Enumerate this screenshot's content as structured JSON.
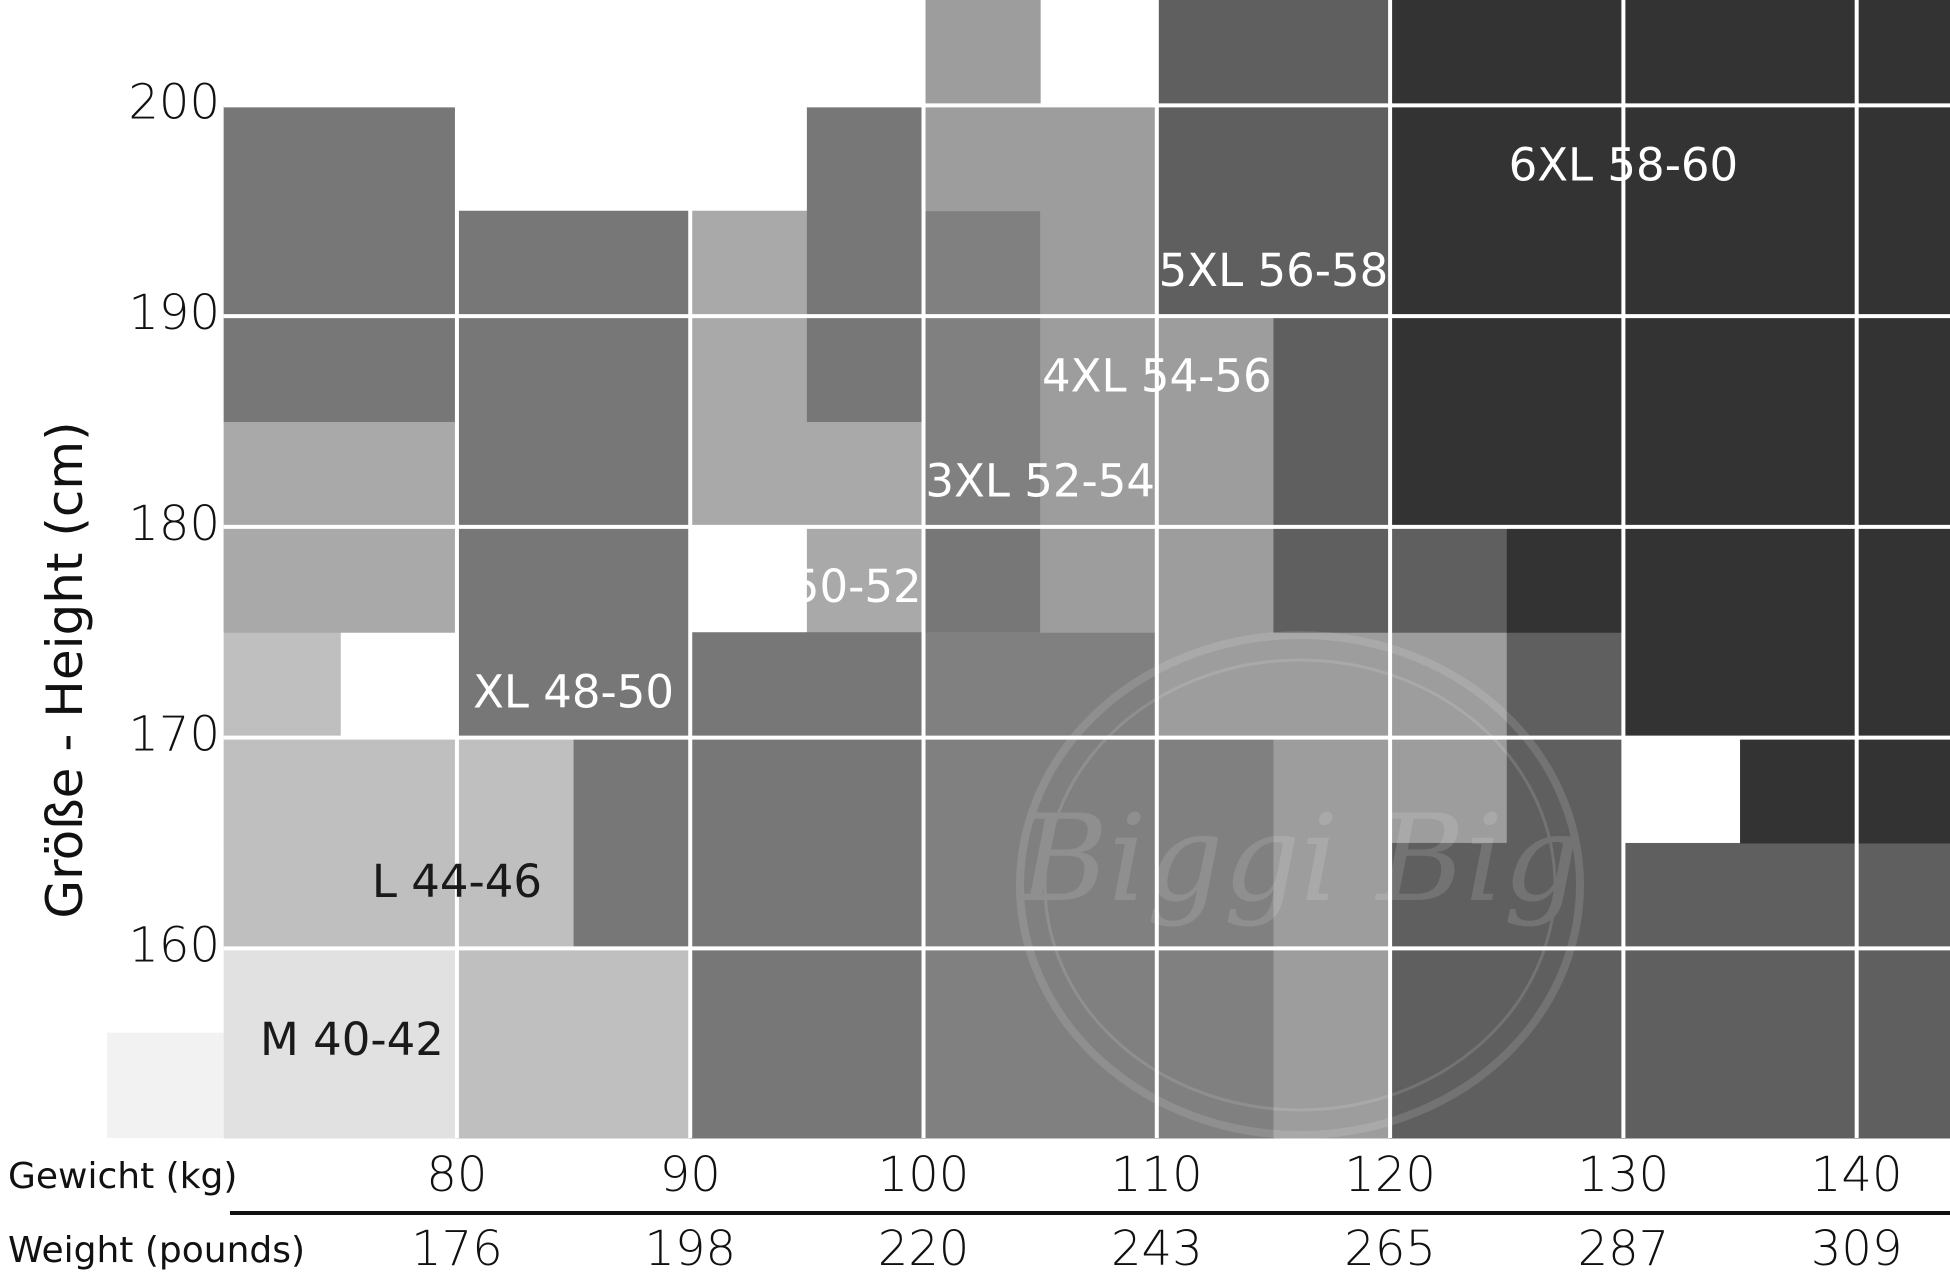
{
  "chart_data": {
    "type": "heatmap",
    "title": "",
    "ylabel": "Größe - Height (cm)",
    "x_axis_rows": [
      {
        "label": "Gewicht (kg)",
        "ticks": [
          "80",
          "90",
          "100",
          "110",
          "120",
          "130",
          "140"
        ]
      },
      {
        "label": "Weight (pounds)",
        "ticks": [
          "176",
          "198",
          "220",
          "243",
          "265",
          "287",
          "309"
        ]
      }
    ],
    "x_ticks": [
      80,
      90,
      100,
      110,
      120,
      130,
      140
    ],
    "y_ticks": [
      "160",
      "170",
      "180",
      "190",
      "200"
    ],
    "y_tick_values": [
      160,
      170,
      180,
      190,
      200
    ],
    "xlim": [
      65,
      144
    ],
    "ylim": [
      151,
      205
    ],
    "zones": [
      {
        "label": "M 40-42",
        "color": "#e1e1e1",
        "label_at": [
          75.5,
          155.5
        ],
        "cells": [
          [
            70,
            75,
            151,
            156
          ],
          [
            75,
            80,
            151,
            156
          ],
          [
            75,
            80,
            156,
            160
          ],
          [
            70,
            75,
            156,
            160
          ]
        ]
      },
      {
        "label": "L 44-46",
        "color": "#bfbfbf",
        "label_at": [
          80,
          163
        ],
        "cells": [
          [
            70,
            75,
            160,
            165
          ],
          [
            75,
            80,
            160,
            170
          ],
          [
            70,
            75,
            165,
            180
          ],
          [
            80,
            85,
            151,
            170
          ],
          [
            85,
            90,
            151,
            160
          ]
        ]
      },
      {
        "label": "XL 48-50",
        "color": "#a9a9a9",
        "label_at": [
          85,
          172
        ],
        "cells": [
          [
            70,
            80,
            175,
            185
          ],
          [
            90,
            95,
            180,
            195
          ],
          [
            95,
            100,
            175,
            185
          ]
        ]
      },
      {
        "label": "2XL 50-52",
        "color": "#777777",
        "label_at": [
          95,
          177
        ],
        "cells": [
          [
            80,
            90,
            170,
            195
          ],
          [
            85,
            90,
            160,
            170
          ],
          [
            90,
            100,
            151,
            175
          ],
          [
            95,
            100,
            185,
            200
          ],
          [
            100,
            105,
            175,
            180
          ],
          [
            70,
            80,
            185,
            200
          ]
        ]
      },
      {
        "label": "3XL 52-54",
        "color": "#808080",
        "label_at": [
          105,
          182
        ],
        "cells": [
          [
            100,
            105,
            180,
            195
          ],
          [
            105,
            110,
            170,
            180
          ],
          [
            110,
            115,
            151,
            170
          ],
          [
            105,
            110,
            151,
            170
          ],
          [
            100,
            110,
            151,
            175
          ]
        ]
      },
      {
        "label": "4XL 54-56",
        "color": "#9d9d9d",
        "label_at": [
          110,
          187
        ],
        "cells": [
          [
            105,
            115,
            175,
            200
          ],
          [
            110,
            115,
            170,
            185
          ],
          [
            115,
            125,
            151,
            175
          ],
          [
            100,
            105,
            195,
            205
          ]
        ]
      },
      {
        "label": "5XL 56-58",
        "color": "#5f5f5f",
        "label_at": [
          115,
          192
        ],
        "cells": [
          [
            110,
            120,
            190,
            205
          ],
          [
            115,
            120,
            175,
            190
          ],
          [
            120,
            125,
            175,
            180
          ],
          [
            125,
            130,
            165,
            175
          ],
          [
            120,
            130,
            151,
            165
          ],
          [
            130,
            144,
            151,
            165
          ]
        ]
      },
      {
        "label": "6XL 58-60",
        "color": "#333333",
        "label_at": [
          130,
          197
        ],
        "cells": [
          [
            120,
            144,
            180,
            205
          ],
          [
            125,
            130,
            175,
            180
          ],
          [
            130,
            144,
            170,
            180
          ],
          [
            135,
            144,
            165,
            170
          ]
        ]
      }
    ],
    "extra_patches": [
      {
        "color": "#f2f2f2",
        "x": [
          65,
          70
        ],
        "y": [
          151,
          156
        ]
      }
    ],
    "legend": "none",
    "grid": true,
    "watermark_text": "Biggi Big"
  }
}
